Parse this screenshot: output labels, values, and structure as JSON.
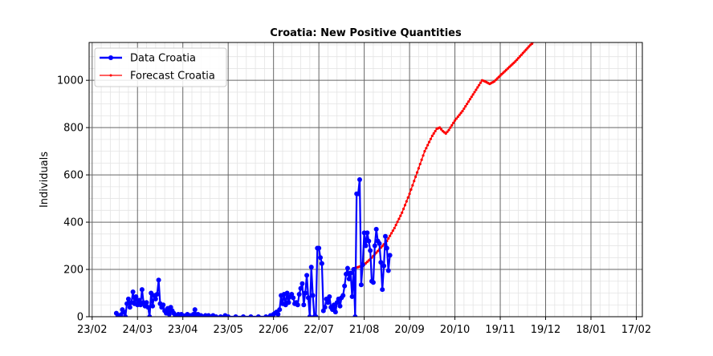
{
  "chart_data": {
    "type": "line",
    "title": "Croatia: New Positive Quantities",
    "xlabel": "",
    "ylabel": "Individuals",
    "x_start_date": "2020-02-23",
    "xlim_days": [
      -2,
      364
    ],
    "ylim": [
      0,
      1160
    ],
    "x_ticks": [
      {
        "day": 0,
        "label": "23/02"
      },
      {
        "day": 30,
        "label": "24/03"
      },
      {
        "day": 60,
        "label": "23/04"
      },
      {
        "day": 90,
        "label": "23/05"
      },
      {
        "day": 120,
        "label": "22/06"
      },
      {
        "day": 150,
        "label": "22/07"
      },
      {
        "day": 180,
        "label": "21/08"
      },
      {
        "day": 210,
        "label": "20/09"
      },
      {
        "day": 240,
        "label": "20/10"
      },
      {
        "day": 270,
        "label": "19/11"
      },
      {
        "day": 300,
        "label": "19/12"
      },
      {
        "day": 330,
        "label": "18/01"
      },
      {
        "day": 360,
        "label": "17/02"
      }
    ],
    "y_ticks": [
      0,
      200,
      400,
      600,
      800,
      1000
    ],
    "grid": true,
    "legend_position": "top-left",
    "series": [
      {
        "name": "Data Croatia",
        "color": "#0000ff",
        "marker": "circle",
        "points": [
          [
            16,
            15
          ],
          [
            17,
            5
          ],
          [
            18,
            0
          ],
          [
            19,
            8
          ],
          [
            20,
            30
          ],
          [
            21,
            20
          ],
          [
            22,
            0
          ],
          [
            23,
            55
          ],
          [
            24,
            75
          ],
          [
            25,
            40
          ],
          [
            26,
            60
          ],
          [
            27,
            105
          ],
          [
            28,
            55
          ],
          [
            29,
            85
          ],
          [
            30,
            50
          ],
          [
            31,
            70
          ],
          [
            32,
            50
          ],
          [
            33,
            115
          ],
          [
            34,
            60
          ],
          [
            35,
            45
          ],
          [
            36,
            60
          ],
          [
            37,
            40
          ],
          [
            38,
            0
          ],
          [
            39,
            100
          ],
          [
            40,
            45
          ],
          [
            41,
            90
          ],
          [
            42,
            75
          ],
          [
            43,
            95
          ],
          [
            44,
            155
          ],
          [
            45,
            55
          ],
          [
            46,
            40
          ],
          [
            47,
            50
          ],
          [
            48,
            25
          ],
          [
            49,
            15
          ],
          [
            50,
            35
          ],
          [
            51,
            10
          ],
          [
            52,
            40
          ],
          [
            53,
            25
          ],
          [
            54,
            15
          ],
          [
            55,
            5
          ],
          [
            56,
            0
          ],
          [
            57,
            10
          ],
          [
            58,
            5
          ],
          [
            59,
            10
          ],
          [
            60,
            5
          ],
          [
            61,
            0
          ],
          [
            62,
            5
          ],
          [
            63,
            10
          ],
          [
            64,
            0
          ],
          [
            65,
            5
          ],
          [
            66,
            0
          ],
          [
            67,
            10
          ],
          [
            68,
            30
          ],
          [
            69,
            5
          ],
          [
            70,
            10
          ],
          [
            71,
            5
          ],
          [
            72,
            5
          ],
          [
            73,
            0
          ],
          [
            74,
            0
          ],
          [
            75,
            5
          ],
          [
            76,
            0
          ],
          [
            77,
            5
          ],
          [
            78,
            0
          ],
          [
            80,
            5
          ],
          [
            82,
            0
          ],
          [
            85,
            0
          ],
          [
            88,
            5
          ],
          [
            90,
            0
          ],
          [
            95,
            0
          ],
          [
            100,
            0
          ],
          [
            105,
            0
          ],
          [
            110,
            0
          ],
          [
            115,
            0
          ],
          [
            118,
            5
          ],
          [
            120,
            10
          ],
          [
            121,
            15
          ],
          [
            122,
            20
          ],
          [
            123,
            10
          ],
          [
            124,
            30
          ],
          [
            125,
            90
          ],
          [
            126,
            55
          ],
          [
            127,
            95
          ],
          [
            128,
            50
          ],
          [
            129,
            100
          ],
          [
            130,
            60
          ],
          [
            131,
            85
          ],
          [
            132,
            95
          ],
          [
            133,
            80
          ],
          [
            134,
            55
          ],
          [
            135,
            60
          ],
          [
            136,
            50
          ],
          [
            137,
            95
          ],
          [
            138,
            120
          ],
          [
            139,
            140
          ],
          [
            140,
            50
          ],
          [
            141,
            100
          ],
          [
            142,
            175
          ],
          [
            143,
            80
          ],
          [
            144,
            0
          ],
          [
            145,
            210
          ],
          [
            146,
            90
          ],
          [
            147,
            0
          ],
          [
            148,
            0
          ],
          [
            149,
            290
          ],
          [
            150,
            290
          ],
          [
            151,
            250
          ],
          [
            152,
            225
          ],
          [
            153,
            25
          ],
          [
            154,
            40
          ],
          [
            155,
            75
          ],
          [
            156,
            60
          ],
          [
            157,
            85
          ],
          [
            158,
            40
          ],
          [
            159,
            30
          ],
          [
            160,
            50
          ],
          [
            161,
            20
          ],
          [
            162,
            60
          ],
          [
            163,
            75
          ],
          [
            164,
            45
          ],
          [
            165,
            80
          ],
          [
            166,
            90
          ],
          [
            167,
            130
          ],
          [
            168,
            180
          ],
          [
            169,
            205
          ],
          [
            170,
            160
          ],
          [
            171,
            185
          ],
          [
            172,
            85
          ],
          [
            173,
            200
          ],
          [
            174,
            0
          ],
          [
            175,
            520
          ],
          [
            176,
            520
          ],
          [
            177,
            580
          ],
          [
            178,
            135
          ],
          [
            179,
            220
          ],
          [
            180,
            355
          ],
          [
            181,
            300
          ],
          [
            182,
            355
          ],
          [
            183,
            320
          ],
          [
            184,
            280
          ],
          [
            185,
            150
          ],
          [
            186,
            145
          ],
          [
            187,
            300
          ],
          [
            188,
            370
          ],
          [
            189,
            320
          ],
          [
            190,
            310
          ],
          [
            191,
            230
          ],
          [
            192,
            115
          ],
          [
            193,
            215
          ],
          [
            194,
            340
          ],
          [
            195,
            290
          ],
          [
            196,
            195
          ],
          [
            197,
            260
          ]
        ]
      },
      {
        "name": "Forecast Croatia",
        "color": "#ff0000",
        "marker": "dot",
        "points": [
          [
            173,
            205
          ],
          [
            176,
            210
          ],
          [
            180,
            220
          ],
          [
            185,
            250
          ],
          [
            190,
            285
          ],
          [
            195,
            320
          ],
          [
            200,
            375
          ],
          [
            205,
            440
          ],
          [
            210,
            520
          ],
          [
            215,
            610
          ],
          [
            220,
            700
          ],
          [
            225,
            765
          ],
          [
            228,
            795
          ],
          [
            230,
            800
          ],
          [
            232,
            785
          ],
          [
            234,
            775
          ],
          [
            236,
            790
          ],
          [
            240,
            830
          ],
          [
            245,
            870
          ],
          [
            250,
            920
          ],
          [
            255,
            970
          ],
          [
            258,
            1000
          ],
          [
            260,
            995
          ],
          [
            263,
            985
          ],
          [
            266,
            995
          ],
          [
            270,
            1020
          ],
          [
            275,
            1050
          ],
          [
            280,
            1080
          ],
          [
            285,
            1115
          ],
          [
            290,
            1150
          ],
          [
            292,
            1160
          ]
        ]
      }
    ]
  }
}
